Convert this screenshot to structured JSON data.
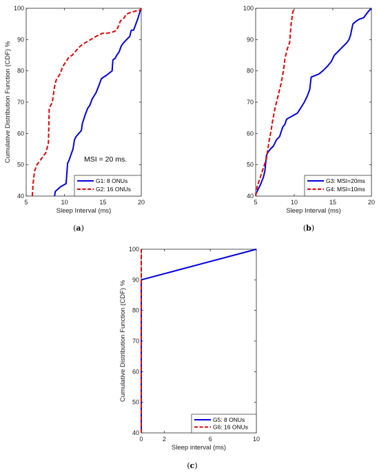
{
  "chart_data": [
    {
      "id": "a",
      "type": "line",
      "caption": "a",
      "xlabel": "Sleep Interval (ms)",
      "ylabel": "Cumulative Distribution Function (CDF) %",
      "xlim": [
        5,
        20
      ],
      "ylim": [
        40,
        100
      ],
      "xticks": [
        "5",
        "10",
        "15",
        "20"
      ],
      "yticks": [
        "40",
        "50",
        "60",
        "70",
        "80",
        "90",
        "100"
      ],
      "grid": false,
      "legend_position": "bottom-right",
      "annotation": "MSI = 20 ms.",
      "series": [
        {
          "name": "G1:  8 ONUs",
          "color": "#0000e0",
          "dash": "solid",
          "x": [
            8.7,
            8.8,
            9.5,
            10.2,
            10.4,
            10.6,
            10.8,
            11.1,
            11.3,
            11.5,
            12.2,
            12.3,
            12.7,
            13.0,
            13.3,
            13.6,
            14.1,
            14.5,
            14.8,
            15.1,
            15.4,
            16.2,
            16.3,
            16.6,
            16.8,
            17.1,
            17.4,
            17.7,
            18.1,
            18.5,
            18.6,
            18.7,
            19.0,
            19.6,
            19.9,
            20.0
          ],
          "y": [
            40,
            41.5,
            43,
            44,
            50.5,
            51.5,
            53,
            55,
            58,
            59,
            61,
            63,
            66,
            68,
            69,
            71,
            73,
            75.5,
            77.5,
            78,
            78.5,
            80,
            83.5,
            84,
            85,
            86,
            88,
            89,
            90,
            91,
            92,
            93,
            93,
            97,
            99.5,
            100
          ]
        },
        {
          "name": "G2: 16 ONUs",
          "color": "#e00000",
          "dash": "dashed",
          "x": [
            5.8,
            5.9,
            6.1,
            6.4,
            7.0,
            7.6,
            7.9,
            8.0,
            8.4,
            8.7,
            8.9,
            9.4,
            9.8,
            10.2,
            10.6,
            11.0,
            11.7,
            12.1,
            12.7,
            13.4,
            14.1,
            14.9,
            15.5,
            16.4,
            16.8,
            17.3,
            17.8,
            18.0,
            18.4,
            19.1,
            19.9,
            20.0
          ],
          "y": [
            40,
            44,
            48,
            50,
            52,
            54,
            57,
            68,
            70,
            75,
            77,
            79,
            81.5,
            83,
            84.5,
            85,
            87,
            88,
            89,
            90,
            91,
            92,
            92,
            92.5,
            93,
            96,
            97,
            98,
            98.5,
            99,
            99.5,
            100
          ]
        }
      ]
    },
    {
      "id": "b",
      "type": "line",
      "caption": "b",
      "xlabel": "Sleep Interval (ms)",
      "ylabel": "",
      "xlim": [
        5,
        20
      ],
      "ylim": [
        40,
        100
      ],
      "xticks": [
        "5",
        "10",
        "15",
        "20"
      ],
      "yticks": [
        "40",
        "50",
        "60",
        "70",
        "80",
        "90",
        "100"
      ],
      "grid": false,
      "legend_position": "bottom-right",
      "series": [
        {
          "name": "G3: MSI=20ms",
          "color": "#0000e0",
          "dash": "solid",
          "x": [
            5.0,
            5.2,
            5.6,
            6.0,
            6.2,
            6.4,
            6.6,
            6.9,
            7.3,
            7.7,
            8.1,
            8.5,
            8.8,
            9.0,
            9.3,
            9.7,
            10.4,
            10.8,
            11.3,
            11.7,
            12.0,
            12.1,
            12.2,
            13.2,
            13.7,
            14.3,
            14.8,
            15.2,
            15.6,
            16.0,
            16.4,
            16.8,
            17.1,
            17.3,
            17.6,
            18.1,
            18.4,
            19.0,
            19.6,
            20.0
          ],
          "y": [
            40.5,
            41.5,
            43.5,
            46,
            48,
            53,
            54,
            55,
            56,
            58,
            59,
            62,
            63,
            64.5,
            65,
            65.5,
            66.5,
            68,
            70,
            72,
            74,
            76,
            78,
            79,
            80,
            81.5,
            83,
            85,
            86,
            87,
            88,
            89,
            90,
            91.5,
            95,
            96,
            96.5,
            97,
            99,
            100
          ]
        },
        {
          "name": "G4: MSI=10ms",
          "color": "#e00000",
          "dash": "dashed",
          "x": [
            5.0,
            5.2,
            5.6,
            6.0,
            6.4,
            6.7,
            7.0,
            7.2,
            7.5,
            7.8,
            8.0,
            8.3,
            8.6,
            8.8,
            9.1,
            9.4,
            9.6,
            9.8,
            9.9,
            10.0
          ],
          "y": [
            40,
            43,
            46,
            49,
            52,
            57,
            61,
            64,
            68,
            71,
            73,
            76,
            80,
            84,
            87,
            89,
            95,
            98.5,
            99.5,
            100
          ]
        }
      ]
    },
    {
      "id": "c",
      "type": "line",
      "caption": "c",
      "xlabel": "Sleep interval (ms)",
      "ylabel": "Cumulative Distribution Function (CDF) %",
      "xlim": [
        0,
        10
      ],
      "ylim": [
        40,
        100
      ],
      "xticks": [
        "0",
        "2",
        "6",
        "10"
      ],
      "yticks": [
        "40",
        "50",
        "60",
        "70",
        "80",
        "90",
        "100"
      ],
      "grid": false,
      "legend_position": "bottom-right",
      "series": [
        {
          "name": "G5:  8 ONUs",
          "color": "#0000e0",
          "dash": "solid",
          "x": [
            0,
            0,
            10
          ],
          "y": [
            40,
            90,
            100
          ]
        },
        {
          "name": "G6: 16 ONUs",
          "color": "#e00000",
          "dash": "dashed",
          "x": [
            0,
            0
          ],
          "y": [
            40,
            100
          ]
        }
      ]
    }
  ]
}
